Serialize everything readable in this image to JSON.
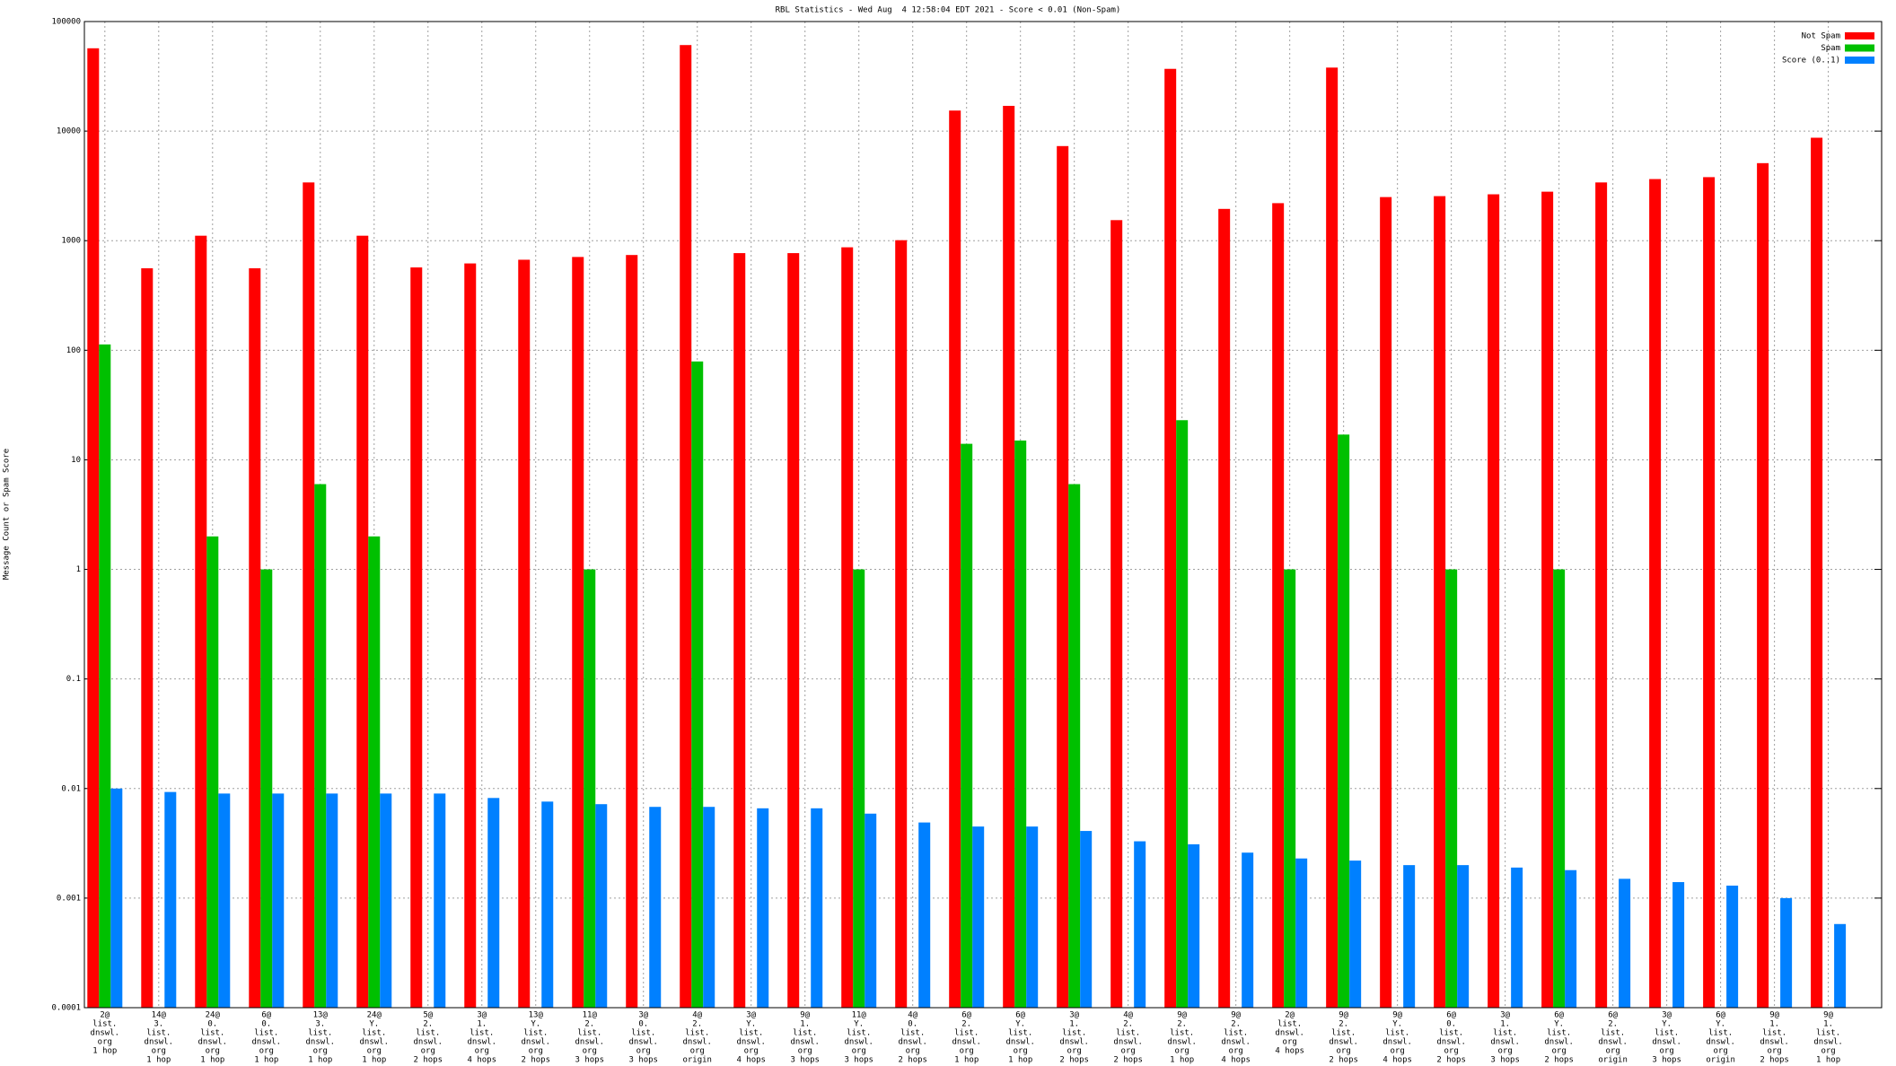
{
  "chart_data": {
    "type": "bar",
    "title": "RBL Statistics - Wed Aug  4 12:58:04 EDT 2021 - Score < 0.01 (Non-Spam)",
    "y_label": "Message Count or Spam Score",
    "log_scale": true,
    "grid": true,
    "legend": "top-right",
    "ylim": [
      0.0001,
      100000
    ],
    "yticks": [
      100000,
      10000,
      1000,
      100,
      10,
      1,
      0.1,
      0.01,
      0.001,
      0.0001
    ],
    "categories": [
      [
        "2@",
        "list.",
        "dnswl.",
        "org",
        "1 hop"
      ],
      [
        "14@",
        "3.",
        "list.",
        "dnswl.",
        "org",
        "1 hop"
      ],
      [
        "24@",
        "0.",
        "list.",
        "dnswl.",
        "org",
        "1 hop"
      ],
      [
        "6@",
        "0.",
        "list.",
        "dnswl.",
        "org",
        "1 hop"
      ],
      [
        "13@",
        "3.",
        "list.",
        "dnswl.",
        "org",
        "1 hop"
      ],
      [
        "24@",
        "Y.",
        "list.",
        "dnswl.",
        "org",
        "1 hop"
      ],
      [
        "5@",
        "2.",
        "list.",
        "dnswl.",
        "org",
        "2 hops"
      ],
      [
        "3@",
        "1.",
        "list.",
        "dnswl.",
        "org",
        "4 hops"
      ],
      [
        "13@",
        "Y.",
        "list.",
        "dnswl.",
        "org",
        "2 hops"
      ],
      [
        "11@",
        "2.",
        "list.",
        "dnswl.",
        "org",
        "3 hops"
      ],
      [
        "3@",
        "0.",
        "list.",
        "dnswl.",
        "org",
        "3 hops"
      ],
      [
        "4@",
        "2.",
        "list.",
        "dnswl.",
        "org",
        "origin"
      ],
      [
        "3@",
        "Y.",
        "list.",
        "dnswl.",
        "org",
        "4 hops"
      ],
      [
        "9@",
        "1.",
        "list.",
        "dnswl.",
        "org",
        "3 hops"
      ],
      [
        "11@",
        "Y.",
        "list.",
        "dnswl.",
        "org",
        "3 hops"
      ],
      [
        "4@",
        "0.",
        "list.",
        "dnswl.",
        "org",
        "2 hops"
      ],
      [
        "6@",
        "2.",
        "list.",
        "dnswl.",
        "org",
        "1 hop"
      ],
      [
        "6@",
        "Y.",
        "list.",
        "dnswl.",
        "org",
        "1 hop"
      ],
      [
        "3@",
        "1.",
        "list.",
        "dnswl.",
        "org",
        "2 hops"
      ],
      [
        "4@",
        "2.",
        "list.",
        "dnswl.",
        "org",
        "2 hops"
      ],
      [
        "9@",
        "2.",
        "list.",
        "dnswl.",
        "org",
        "1 hop"
      ],
      [
        "9@",
        "2.",
        "list.",
        "dnswl.",
        "org",
        "4 hops"
      ],
      [
        "2@",
        "list.",
        "dnswl.",
        "org",
        "4 hops"
      ],
      [
        "9@",
        "2.",
        "list.",
        "dnswl.",
        "org",
        "2 hops"
      ],
      [
        "9@",
        "Y.",
        "list.",
        "dnswl.",
        "org",
        "4 hops"
      ],
      [
        "6@",
        "0.",
        "list.",
        "dnswl.",
        "org",
        "2 hops"
      ],
      [
        "3@",
        "1.",
        "list.",
        "dnswl.",
        "org",
        "3 hops"
      ],
      [
        "6@",
        "Y.",
        "list.",
        "dnswl.",
        "org",
        "2 hops"
      ],
      [
        "6@",
        "2.",
        "list.",
        "dnswl.",
        "org",
        "origin"
      ],
      [
        "3@",
        "Y.",
        "list.",
        "dnswl.",
        "org",
        "3 hops"
      ],
      [
        "6@",
        "Y.",
        "list.",
        "dnswl.",
        "org",
        "origin"
      ],
      [
        "9@",
        "1.",
        "list.",
        "dnswl.",
        "org",
        "2 hops"
      ],
      [
        "9@",
        "1.",
        "list.",
        "dnswl.",
        "org",
        "1 hop"
      ]
    ],
    "series": [
      {
        "name": "Not Spam",
        "color": "#ff0000",
        "values": [
          57000,
          560,
          1110,
          560,
          3400,
          1110,
          570,
          620,
          670,
          710,
          740,
          61000,
          770,
          770,
          870,
          1010,
          15400,
          17000,
          7300,
          1540,
          37000,
          1950,
          2200,
          38000,
          2500,
          2550,
          2650,
          2800,
          3400,
          3650,
          3800,
          5100,
          8700
        ]
      },
      {
        "name": "Spam",
        "color": "#00c000",
        "values": [
          113,
          null,
          2,
          1,
          6,
          2,
          null,
          null,
          null,
          1,
          null,
          79,
          null,
          null,
          1,
          null,
          14,
          15,
          6,
          null,
          23,
          null,
          1,
          17,
          null,
          1,
          null,
          1,
          null,
          null,
          null,
          null,
          null
        ]
      },
      {
        "name": "Score (0..1)",
        "color": "#0080ff",
        "values": [
          0.01,
          0.0093,
          0.009,
          0.009,
          0.009,
          0.009,
          0.009,
          0.0082,
          0.0076,
          0.0072,
          0.0068,
          0.0068,
          0.0066,
          0.0066,
          0.0059,
          0.0049,
          0.0045,
          0.0045,
          0.0041,
          0.0033,
          0.0031,
          0.0026,
          0.0023,
          0.0022,
          0.002,
          0.002,
          0.0019,
          0.0018,
          0.0015,
          0.0014,
          0.0013,
          0.001,
          0.00058
        ]
      }
    ]
  }
}
